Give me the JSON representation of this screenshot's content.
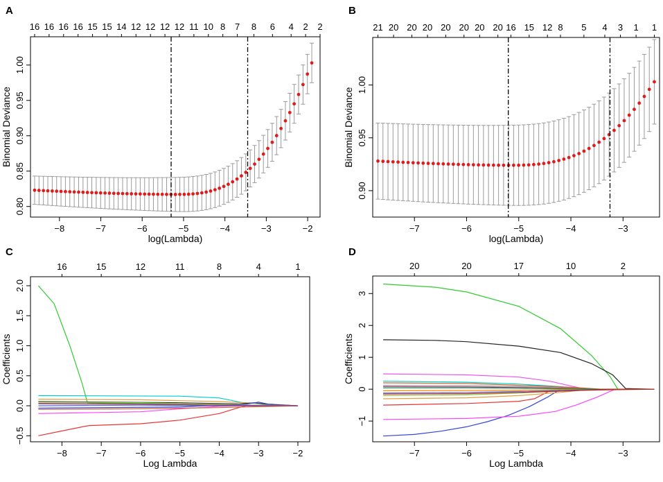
{
  "chart_data": [
    {
      "panel": "A",
      "type": "scatter",
      "xlabel": "log(Lambda)",
      "ylabel": "Binomial Deviance",
      "xlim": [
        -8.7,
        -1.7
      ],
      "ylim": [
        0.785,
        1.04
      ],
      "xticks": [
        -8,
        -7,
        -6,
        -5,
        -4,
        -3,
        -2
      ],
      "yticks": [
        0.8,
        0.85,
        0.9,
        0.95,
        1.0
      ],
      "ytick_labels": [
        "0.80",
        "0.85",
        "0.90",
        "0.95",
        "1.00"
      ],
      "top_axis": {
        "x": [
          -8.6,
          -8.25,
          -7.9,
          -7.55,
          -7.2,
          -6.85,
          -6.5,
          -6.15,
          -5.8,
          -5.45,
          -5.1,
          -4.75,
          -4.4,
          -4.05,
          -3.7,
          -3.3,
          -2.85,
          -2.4,
          -2.05,
          -1.7
        ],
        "labels": [
          "16",
          "16",
          "16",
          "16",
          "15",
          "15",
          "14",
          "12",
          "12",
          "12",
          "12",
          "11",
          "10",
          "8",
          "7",
          "8",
          "6",
          "4",
          "2",
          "2"
        ]
      },
      "vlines": [
        -5.3,
        -3.45
      ],
      "curve": {
        "x_start": -8.6,
        "x_end": -1.9,
        "n_points": 64,
        "y_min": 0.817,
        "x_min": -5.2,
        "y_left": 0.823,
        "y_right": 1.003,
        "cv_band_low": 0.02,
        "cv_band_high": 0.028
      }
    },
    {
      "panel": "B",
      "type": "scatter",
      "xlabel": "log(Lambda)",
      "ylabel": "Binomial Deviance",
      "xlim": [
        -7.8,
        -2.3
      ],
      "ylim": [
        0.875,
        1.045
      ],
      "xticks": [
        -7,
        -6,
        -5,
        -4,
        -3
      ],
      "yticks": [
        0.9,
        0.95,
        1.0
      ],
      "ytick_labels": [
        "0.90",
        "0.95",
        "1.00"
      ],
      "top_axis": {
        "x": [
          -7.7,
          -7.4,
          -7.05,
          -6.75,
          -6.4,
          -6.05,
          -5.75,
          -5.4,
          -5.15,
          -4.8,
          -4.45,
          -4.2,
          -3.75,
          -3.35,
          -3.05,
          -2.75,
          -2.4
        ],
        "labels": [
          "21",
          "20",
          "20",
          "20",
          "20",
          "20",
          "20",
          "20",
          "16",
          "15",
          "12",
          "8",
          "5",
          "4",
          "3",
          "1",
          "1"
        ]
      },
      "vlines": [
        -5.2,
        -3.25
      ],
      "curve": {
        "x_start": -7.7,
        "x_end": -2.4,
        "n_points": 56,
        "y_min": 0.924,
        "x_min": -5.2,
        "y_left": 0.928,
        "y_right": 1.003,
        "cv_band_low": 0.036,
        "cv_band_high": 0.04
      }
    },
    {
      "panel": "C",
      "type": "line",
      "xlabel": "Log Lambda",
      "ylabel": "Coefficients",
      "xlim": [
        -8.8,
        -1.7
      ],
      "ylim": [
        -0.6,
        2.15
      ],
      "xticks": [
        -8,
        -7,
        -6,
        -5,
        -4,
        -3,
        -2
      ],
      "yticks": [
        -0.5,
        0,
        0.5,
        1,
        1.5,
        2
      ],
      "ytick_labels": [
        "−0.5",
        "0.0",
        "0.5",
        "1.0",
        "1.5",
        "2.0"
      ],
      "top_axis": {
        "x": [
          -8.0,
          -7.0,
          -6.0,
          -5.0,
          -4.0,
          -3.0,
          -2.0
        ],
        "labels": [
          "16",
          "15",
          "12",
          "11",
          "8",
          "4",
          "1"
        ]
      },
      "series": [
        {
          "color": "#2ecc2e",
          "x": [
            -8.6,
            -8.2,
            -7.8,
            -7.5,
            -7.35,
            -2.0
          ],
          "y": [
            2.0,
            1.7,
            1.0,
            0.4,
            0.05,
            0.0
          ]
        },
        {
          "color": "#e83535",
          "x": [
            -8.6,
            -8.0,
            -7.4,
            -7.3,
            -6.0,
            -5.0,
            -4.0,
            -3.5,
            -3.3,
            -2.0
          ],
          "y": [
            -0.5,
            -0.42,
            -0.34,
            -0.33,
            -0.3,
            -0.24,
            -0.13,
            -0.03,
            0.0,
            0.0
          ]
        },
        {
          "color": "#00cccc",
          "x": [
            -8.6,
            -5.0,
            -4.0,
            -3.4,
            -2.0
          ],
          "y": [
            0.17,
            0.16,
            0.13,
            0.05,
            0.0
          ]
        },
        {
          "color": "#ff44ff",
          "x": [
            -8.6,
            -6.0,
            -5.2,
            -4.5,
            -4.0,
            -3.5,
            -2.0
          ],
          "y": [
            -0.13,
            -0.1,
            -0.06,
            -0.03,
            -0.01,
            0.0,
            0.0
          ]
        },
        {
          "color": "#e0a040",
          "x": [
            -8.6,
            -6.0,
            -4.0,
            -3.0,
            -2.0
          ],
          "y": [
            0.11,
            0.1,
            0.07,
            0.04,
            0.0
          ]
        },
        {
          "color": "#333333",
          "x": [
            -8.6,
            -5.0,
            -3.5,
            -3.1,
            -2.9,
            -2.0
          ],
          "y": [
            0.07,
            0.05,
            0.03,
            0.05,
            0.03,
            0.0
          ]
        },
        {
          "color": "#3344dd",
          "x": [
            -8.6,
            -5.0,
            -3.3,
            -3.0,
            -2.7,
            -2.0
          ],
          "y": [
            -0.04,
            -0.02,
            0.03,
            0.06,
            0.02,
            0.0
          ]
        },
        {
          "color": "#999999",
          "x": [
            -8.6,
            -6.0,
            -4.0,
            -2.0
          ],
          "y": [
            0.03,
            0.02,
            0.01,
            0.0
          ]
        },
        {
          "color": "#88cc44",
          "x": [
            -8.6,
            -6.0,
            -4.0,
            -2.0
          ],
          "y": [
            0.06,
            0.05,
            0.02,
            0.0
          ]
        },
        {
          "color": "#cc6633",
          "x": [
            -8.6,
            -6.0,
            -4.0,
            -2.0
          ],
          "y": [
            -0.06,
            -0.05,
            -0.03,
            0.0
          ]
        },
        {
          "color": "#5566cc",
          "x": [
            -8.6,
            -6.0,
            -4.0,
            -2.0
          ],
          "y": [
            0.0,
            0.01,
            0.0,
            0.0
          ]
        },
        {
          "color": "#aa3377",
          "x": [
            -8.6,
            -6.0,
            -4.0,
            -2.0
          ],
          "y": [
            0.04,
            0.03,
            0.01,
            0.0
          ]
        }
      ]
    },
    {
      "panel": "D",
      "type": "line",
      "xlabel": "Log Lambda",
      "ylabel": "Coefficients",
      "xlim": [
        -7.8,
        -2.3
      ],
      "ylim": [
        -1.65,
        3.55
      ],
      "xticks": [
        -7,
        -6,
        -5,
        -4,
        -3
      ],
      "yticks": [
        -1,
        0,
        1,
        2,
        3
      ],
      "ytick_labels": [
        "−1",
        "0",
        "1",
        "2",
        "3"
      ],
      "top_axis": {
        "x": [
          -7.0,
          -6.0,
          -5.0,
          -4.0,
          -3.0
        ],
        "labels": [
          "20",
          "20",
          "17",
          "10",
          "2"
        ]
      },
      "series": [
        {
          "color": "#2ecc2e",
          "x": [
            -7.6,
            -6.6,
            -6.0,
            -5.0,
            -4.2,
            -3.6,
            -3.25,
            -3.1,
            -2.4
          ],
          "y": [
            3.3,
            3.2,
            3.05,
            2.6,
            1.9,
            1.05,
            0.4,
            0.0,
            0.0
          ]
        },
        {
          "color": "#222222",
          "x": [
            -7.6,
            -6.6,
            -6.0,
            -5.0,
            -4.2,
            -3.6,
            -3.2,
            -2.95,
            -2.4
          ],
          "y": [
            1.55,
            1.53,
            1.49,
            1.35,
            1.15,
            0.8,
            0.45,
            0.02,
            0.0
          ]
        },
        {
          "color": "#3344dd",
          "x": [
            -7.6,
            -7.0,
            -6.5,
            -6.0,
            -5.6,
            -5.2,
            -4.8,
            -4.45,
            -4.2,
            -2.4
          ],
          "y": [
            -1.47,
            -1.42,
            -1.32,
            -1.18,
            -1.02,
            -0.82,
            -0.55,
            -0.25,
            0.0,
            0.0
          ]
        },
        {
          "color": "#ff44ff",
          "x": [
            -7.6,
            -6.0,
            -5.0,
            -4.3,
            -3.9,
            -3.5,
            -3.15,
            -2.4
          ],
          "y": [
            -0.95,
            -0.92,
            -0.85,
            -0.7,
            -0.5,
            -0.25,
            0.0,
            0.0
          ]
        },
        {
          "color": "#ee55ee",
          "x": [
            -7.6,
            -6.0,
            -5.0,
            -4.4,
            -4.0,
            -3.7,
            -2.4
          ],
          "y": [
            0.48,
            0.45,
            0.38,
            0.25,
            0.1,
            0.0,
            0.0
          ]
        },
        {
          "color": "#e83535",
          "x": [
            -7.6,
            -6.0,
            -5.0,
            -4.7,
            -4.4,
            -2.4
          ],
          "y": [
            -0.5,
            -0.45,
            -0.38,
            -0.3,
            -0.05,
            0.0
          ]
        },
        {
          "color": "#00cccc",
          "x": [
            -7.6,
            -6.0,
            -5.0,
            -4.2,
            -3.8,
            -2.4
          ],
          "y": [
            0.25,
            0.22,
            0.16,
            0.08,
            0.0,
            0.0
          ]
        },
        {
          "color": "#e0a040",
          "x": [
            -7.6,
            -6.0,
            -5.0,
            -4.2,
            -3.6,
            -2.4
          ],
          "y": [
            -0.3,
            -0.27,
            -0.2,
            -0.1,
            0.0,
            0.0
          ]
        },
        {
          "color": "#999999",
          "x": [
            -7.6,
            -6.0,
            -5.0,
            -4.0,
            -3.5,
            -2.4
          ],
          "y": [
            0.12,
            0.11,
            0.08,
            0.04,
            0.0,
            0.0
          ]
        },
        {
          "color": "#88cc44",
          "x": [
            -7.6,
            -6.0,
            -5.0,
            -4.2,
            -3.6,
            -2.4
          ],
          "y": [
            -0.2,
            -0.18,
            -0.12,
            -0.06,
            0.0,
            0.0
          ]
        },
        {
          "color": "#cc6633",
          "x": [
            -7.6,
            -6.0,
            -5.0,
            -4.0,
            -3.4,
            -2.4
          ],
          "y": [
            0.2,
            0.18,
            0.12,
            0.06,
            0.0,
            0.0
          ]
        },
        {
          "color": "#5566cc",
          "x": [
            -7.6,
            -6.0,
            -5.0,
            -4.0,
            -3.5,
            -2.4
          ],
          "y": [
            -0.12,
            -0.1,
            -0.07,
            -0.03,
            0.0,
            0.0
          ]
        },
        {
          "color": "#aa3377",
          "x": [
            -7.6,
            -6.0,
            -5.0,
            -4.0,
            -3.4,
            -2.4
          ],
          "y": [
            0.08,
            0.07,
            0.05,
            0.02,
            0.0,
            0.0
          ]
        },
        {
          "color": "#ff8800",
          "x": [
            -7.6,
            -6.0,
            -5.0,
            -4.2,
            -3.7,
            -2.4
          ],
          "y": [
            -0.05,
            -0.04,
            -0.03,
            -0.01,
            0.0,
            0.0
          ]
        },
        {
          "color": "#119955",
          "x": [
            -7.6,
            -6.0,
            -5.0,
            -4.0,
            -3.5,
            -2.4
          ],
          "y": [
            0.04,
            0.04,
            0.03,
            0.01,
            0.0,
            0.0
          ]
        },
        {
          "color": "#bb2222",
          "x": [
            -7.6,
            -6.0,
            -5.0,
            -4.0,
            -3.3,
            -2.4
          ],
          "y": [
            -0.15,
            -0.14,
            -0.1,
            -0.05,
            0.0,
            0.0
          ]
        }
      ]
    }
  ]
}
